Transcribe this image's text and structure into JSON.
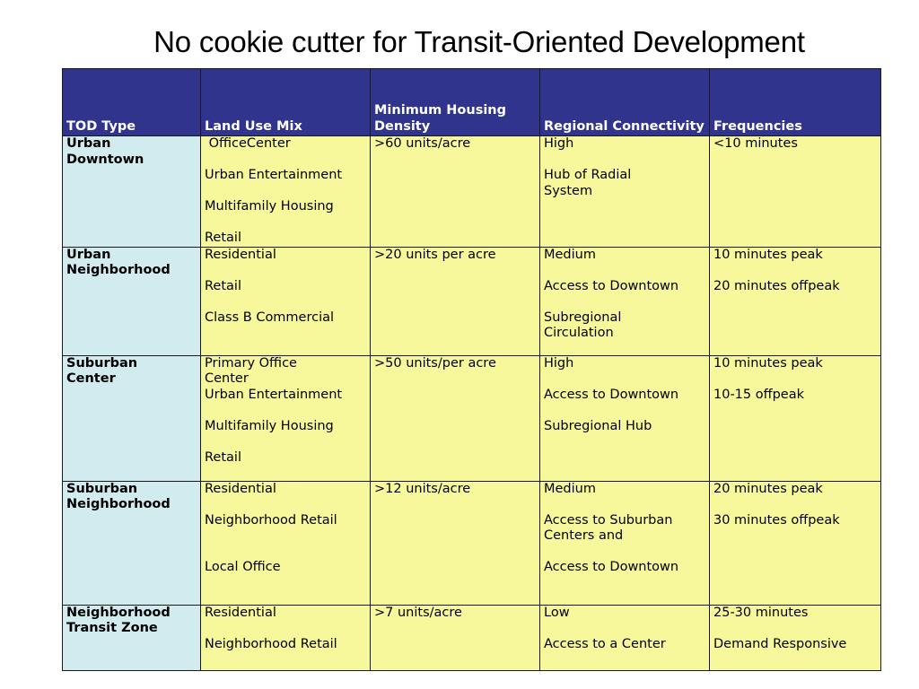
{
  "title": "No cookie cutter for Transit-Oriented Development",
  "table": {
    "headers": [
      "TOD Type",
      "Land Use Mix",
      "Minimum Housing Density",
      "Regional Connectivity",
      "Frequencies"
    ],
    "rows": [
      {
        "type": [
          "Urban",
          "Downtown"
        ],
        "land_use": [
          " OfficeCenter",
          "Urban Entertainment",
          "Multifamily Housing",
          "Retail"
        ],
        "density": ">60 units/acre",
        "connectivity": [
          "High",
          "Hub of Radial",
          "System"
        ],
        "frequencies": [
          "<10 minutes"
        ]
      },
      {
        "type": [
          "Urban",
          "Neighborhood"
        ],
        "land_use": [
          "Residential",
          "Retail",
          "Class B Commercial"
        ],
        "density": ">20 units per acre",
        "connectivity": [
          "Medium",
          "Access to Downtown",
          "Subregional",
          "Circulation"
        ],
        "frequencies": [
          "10 minutes peak",
          "20 minutes offpeak"
        ]
      },
      {
        "type": [
          "Suburban",
          "Center"
        ],
        "land_use": [
          "Primary Office",
          "Center",
          "Urban Entertainment",
          "Multifamily Housing",
          "Retail"
        ],
        "density": ">50 units/per acre",
        "connectivity": [
          "High",
          "Access to Downtown",
          "Subregional Hub"
        ],
        "frequencies": [
          "10 minutes peak",
          "10-15 offpeak"
        ]
      },
      {
        "type": [
          "Suburban",
          "Neighborhood"
        ],
        "land_use": [
          "Residential",
          "Neighborhood Retail",
          "Local Office"
        ],
        "density": ">12 units/acre",
        "connectivity": [
          "Medium",
          "Access to Suburban",
          "Centers and",
          "Access to Downtown"
        ],
        "frequencies": [
          "20 minutes peak",
          "30 minutes offpeak"
        ]
      },
      {
        "type": [
          "Neighborhood",
          "Transit Zone"
        ],
        "land_use": [
          "Residential",
          "Neighborhood Retail"
        ],
        "density": ">7 units/acre",
        "connectivity": [
          "Low",
          "Access to a Center"
        ],
        "frequencies": [
          "25-30 minutes",
          "Demand Responsive"
        ]
      }
    ]
  }
}
